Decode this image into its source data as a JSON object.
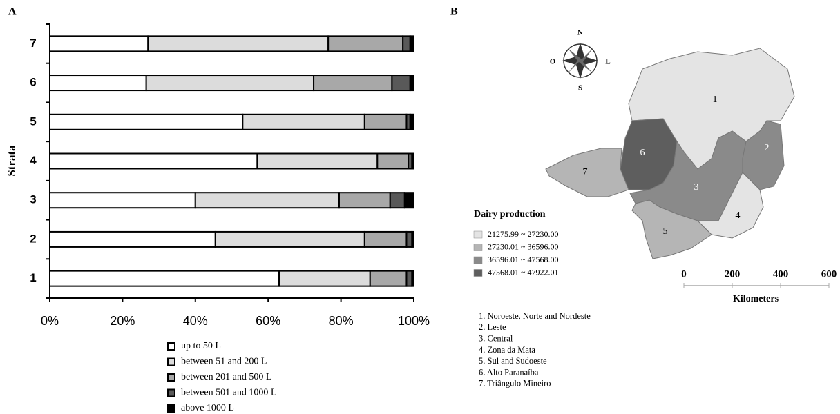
{
  "chart_data": {
    "type": "stacked-bar-horizontal",
    "panel": "A",
    "y_label": "Strata",
    "categories": [
      "1",
      "2",
      "3",
      "4",
      "5",
      "6",
      "7"
    ],
    "series": [
      {
        "name": "up to 50 L",
        "color": "#ffffff",
        "values": [
          63,
          45.5,
          40,
          57,
          53,
          26.5,
          27
        ]
      },
      {
        "name": "between 51 and 200 L",
        "color": "#dcdcdc",
        "values": [
          25,
          41,
          39.5,
          33,
          33.5,
          46,
          49.5
        ]
      },
      {
        "name": "between 201 and 500 L",
        "color": "#a8a8a8",
        "values": [
          10,
          11.5,
          14,
          8.5,
          11.5,
          21.5,
          20.5
        ]
      },
      {
        "name": "between 501 and 1000 L",
        "color": "#595959",
        "values": [
          1.5,
          1.5,
          4,
          1,
          1,
          5,
          2
        ]
      },
      {
        "name": "above 1000 L",
        "color": "#000000",
        "values": [
          0.5,
          0.5,
          2.5,
          0.5,
          1,
          1,
          1
        ]
      }
    ],
    "xlim": [
      0,
      100
    ],
    "xticks": [
      {
        "value": 0,
        "label": "0%"
      },
      {
        "value": 20,
        "label": "20%"
      },
      {
        "value": 40,
        "label": "40%"
      },
      {
        "value": 60,
        "label": "60%"
      },
      {
        "value": 80,
        "label": "80%"
      },
      {
        "value": 100,
        "label": "100%"
      }
    ]
  },
  "map": {
    "panel": "B",
    "compass": {
      "north": "N",
      "south": "S",
      "west": "O",
      "east": "L"
    },
    "legend": {
      "title": "Dairy production",
      "items": [
        {
          "label": "21275.99 ~ 27230.00",
          "color": "#e4e4e4"
        },
        {
          "label": "27230.01 ~ 36596.00",
          "color": "#b5b5b5"
        },
        {
          "label": "36596.01 ~ 47568.00",
          "color": "#8a8a8a"
        },
        {
          "label": "47568.01 ~ 47922.01",
          "color": "#5e5e5e"
        }
      ]
    },
    "scale": {
      "ticks": [
        0,
        200,
        400,
        600
      ],
      "unit": "Kilometers"
    },
    "regions": [
      {
        "label": "1",
        "name": "1. Noroeste, Norte and Nordeste",
        "color": "#e4e4e4"
      },
      {
        "label": "2",
        "name": "2. Leste",
        "color": "#8a8a8a"
      },
      {
        "label": "3",
        "name": "3. Central",
        "color": "#8a8a8a"
      },
      {
        "label": "4",
        "name": "4. Zona da Mata",
        "color": "#e4e4e4"
      },
      {
        "label": "5",
        "name": "5. Sul and Sudoeste",
        "color": "#b5b5b5"
      },
      {
        "label": "6",
        "name": "6. Alto Paranaíba",
        "color": "#5e5e5e"
      },
      {
        "label": "7",
        "name": "7. Triângulo Mineiro",
        "color": "#b5b5b5"
      }
    ]
  }
}
